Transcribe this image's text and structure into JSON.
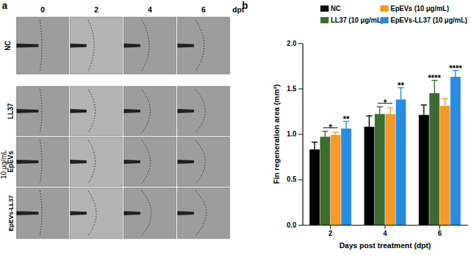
{
  "panel_labels": [
    "a",
    "b"
  ],
  "panel_a": {
    "columns": [
      "0",
      "2",
      "4",
      "6"
    ],
    "column_unit": "dpt",
    "rows": [
      "NC",
      "LL37",
      "EpEVs",
      "EpEVs-LL37"
    ],
    "group_label": "10 μg/mL"
  },
  "chart_data": {
    "type": "bar",
    "x_label": "Days post treatment (dpt)",
    "y_label": "Fin regeneration area (mm²)",
    "categories": [
      "2",
      "4",
      "6"
    ],
    "ylim": [
      0,
      2.0
    ],
    "yticks": [
      {
        "value": 0,
        "label": "0.0"
      },
      0.5,
      {
        "value": 1,
        "label": "1.0"
      },
      1.5,
      {
        "value": 2,
        "label": "2.0"
      }
    ],
    "legend": "top",
    "series": [
      {
        "name": "NC",
        "color": "#000000",
        "values": [
          0.83,
          1.08,
          1.21
        ],
        "errors": [
          0.08,
          0.12,
          0.11
        ]
      },
      {
        "name": "LL37 (10 μg/mL)",
        "color": "#3d6b32",
        "values": [
          0.97,
          1.22,
          1.45
        ],
        "errors": [
          0.06,
          0.08,
          0.14
        ]
      },
      {
        "name": "EpEVs (10 μg/mL)",
        "color": "#f39a2b",
        "values": [
          0.99,
          1.22,
          1.31
        ],
        "errors": [
          0.03,
          0.07,
          0.08
        ]
      },
      {
        "name": "EpEVs-LL37 (10 μg/mL)",
        "color": "#2a8be0",
        "values": [
          1.06,
          1.38,
          1.63
        ],
        "errors": [
          0.08,
          0.13,
          0.07
        ]
      }
    ],
    "annotations": [
      {
        "text": "*",
        "category": "2",
        "series": [
          "LL37 (10 μg/mL)",
          "EpEVs (10 μg/mL)"
        ]
      },
      {
        "text": "**",
        "category": "2",
        "series": [
          "EpEVs-LL37 (10 μg/mL)"
        ]
      },
      {
        "text": "*",
        "category": "4",
        "series": [
          "LL37 (10 μg/mL)",
          "EpEVs (10 μg/mL)"
        ]
      },
      {
        "text": "**",
        "category": "4",
        "series": [
          "EpEVs-LL37 (10 μg/mL)"
        ]
      },
      {
        "text": "****",
        "category": "6",
        "series": [
          "LL37 (10 μg/mL)"
        ]
      },
      {
        "text": "****",
        "category": "6",
        "series": [
          "EpEVs-LL37 (10 μg/mL)"
        ]
      }
    ]
  }
}
